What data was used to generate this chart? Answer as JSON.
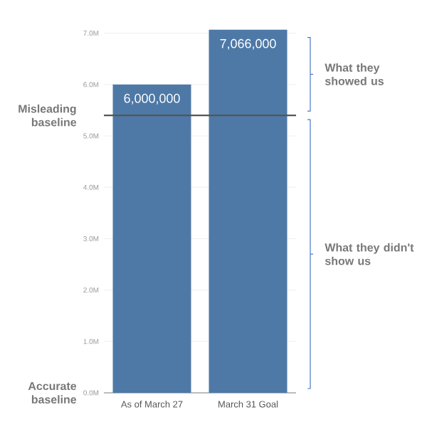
{
  "chart_data": {
    "type": "bar",
    "categories": [
      "As of March 27",
      "March 31 Goal"
    ],
    "values": [
      6000000,
      7066000
    ],
    "color": "#4e79a7",
    "value_labels": [
      "6,000,000",
      "7,066,000"
    ],
    "ylim": [
      0,
      7100000
    ],
    "yticks": [
      {
        "value": 0,
        "label": "0.0M"
      },
      {
        "value": 1000000,
        "label": "1.0M"
      },
      {
        "value": 2000000,
        "label": "2.0M"
      },
      {
        "value": 3000000,
        "label": "3.0M"
      },
      {
        "value": 4000000,
        "label": "4.0M"
      },
      {
        "value": 5000000,
        "label": "5.0M"
      },
      {
        "value": 6000000,
        "label": "6.0M"
      },
      {
        "value": 7000000,
        "label": "7.0M"
      }
    ],
    "grid": "y",
    "ref_lines": [
      {
        "axis": "y",
        "value": 5400000,
        "label": "Misleading baseline",
        "color": "#555555"
      }
    ],
    "annotations": [
      "Accurate baseline",
      "What they showed us",
      "What they didn't show us"
    ]
  }
}
